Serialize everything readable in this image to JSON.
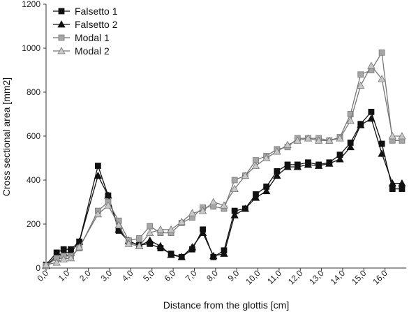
{
  "chart_data": {
    "type": "line",
    "xlabel": "Distance from the glottis [cm]",
    "ylabel": "Cross sectional area [mm2]",
    "ylim": [
      0,
      1200
    ],
    "yticks": [
      "0",
      "200",
      "400",
      "600",
      "800",
      "1000",
      "1200"
    ],
    "xlim": [
      0,
      17.0
    ],
    "xticks": [
      "0,0",
      "1,0",
      "2,0",
      "3,0",
      "4,0",
      "5,0",
      "6,0",
      "7,0",
      "8,0",
      "9,0",
      "10,0",
      "11,0",
      "12,0",
      "13,0",
      "14,0",
      "15,0",
      "16,0"
    ],
    "grid": "none",
    "legend_position": "top-left",
    "series": [
      {
        "name": "Falsetto 1",
        "color": "#111111",
        "marker": "square",
        "marker_fill": "#111111",
        "x": [
          0.0,
          0.5,
          0.83,
          1.17,
          1.57,
          2.45,
          2.93,
          3.43,
          3.9,
          4.4,
          4.9,
          5.4,
          5.9,
          6.4,
          6.9,
          7.4,
          7.9,
          8.4,
          8.9,
          9.4,
          9.9,
          10.4,
          10.9,
          11.4,
          11.87,
          12.37,
          12.87,
          13.37,
          13.87,
          14.37,
          14.85,
          15.35,
          15.85,
          16.35,
          16.8
        ],
        "y": [
          15,
          70,
          85,
          85,
          120,
          465,
          330,
          170,
          120,
          105,
          110,
          90,
          65,
          50,
          85,
          175,
          50,
          80,
          260,
          270,
          335,
          370,
          440,
          470,
          470,
          480,
          470,
          480,
          515,
          570,
          655,
          710,
          565,
          360,
          360
        ]
      },
      {
        "name": "Falsetto 2",
        "color": "#111111",
        "marker": "triangle",
        "marker_fill": "#111111",
        "x": [
          0.0,
          0.5,
          0.83,
          1.17,
          1.57,
          2.45,
          2.93,
          3.43,
          3.9,
          4.4,
          4.9,
          5.4,
          5.9,
          6.4,
          6.9,
          7.4,
          7.9,
          8.4,
          8.9,
          9.4,
          9.9,
          10.4,
          10.9,
          11.4,
          11.87,
          12.37,
          12.87,
          13.37,
          13.87,
          14.37,
          14.85,
          15.35,
          15.85,
          16.35,
          16.8
        ],
        "y": [
          10,
          55,
          70,
          70,
          120,
          420,
          330,
          175,
          125,
          100,
          125,
          100,
          60,
          50,
          95,
          160,
          55,
          65,
          240,
          270,
          320,
          350,
          420,
          460,
          460,
          470,
          465,
          475,
          495,
          550,
          650,
          680,
          520,
          385,
          385
        ]
      },
      {
        "name": "Modal 1",
        "color": "#777777",
        "marker": "square",
        "marker_fill": "#a6a6a6",
        "x": [
          0.0,
          0.5,
          0.83,
          1.17,
          1.57,
          2.45,
          2.93,
          3.43,
          3.9,
          4.4,
          4.9,
          5.4,
          5.9,
          6.4,
          6.9,
          7.4,
          7.9,
          8.4,
          8.9,
          9.4,
          9.9,
          10.4,
          10.9,
          11.4,
          11.87,
          12.37,
          12.87,
          13.37,
          13.87,
          14.37,
          14.85,
          15.35,
          15.85,
          16.35,
          16.8
        ],
        "y": [
          10,
          45,
          55,
          55,
          90,
          260,
          300,
          215,
          125,
          135,
          190,
          160,
          160,
          205,
          230,
          275,
          280,
          270,
          400,
          420,
          490,
          510,
          540,
          550,
          590,
          590,
          590,
          580,
          595,
          700,
          880,
          900,
          980,
          580,
          580
        ]
      },
      {
        "name": "Modal 2",
        "color": "#777777",
        "marker": "triangle",
        "marker_fill": "#c8c8c8",
        "x": [
          0.0,
          0.5,
          0.83,
          1.17,
          1.57,
          2.45,
          2.93,
          3.43,
          3.9,
          4.4,
          4.9,
          5.4,
          5.9,
          6.4,
          6.9,
          7.4,
          7.9,
          8.4,
          8.9,
          9.4,
          9.9,
          10.4,
          10.9,
          11.4,
          11.87,
          12.37,
          12.87,
          13.37,
          13.87,
          14.37,
          14.85,
          15.35,
          15.85,
          16.35,
          16.8
        ],
        "y": [
          15,
          25,
          40,
          45,
          95,
          245,
          285,
          195,
          110,
          100,
          160,
          175,
          175,
          210,
          250,
          260,
          300,
          285,
          360,
          420,
          465,
          500,
          530,
          560,
          580,
          590,
          580,
          580,
          590,
          670,
          830,
          920,
          860,
          600,
          600
        ]
      }
    ]
  }
}
